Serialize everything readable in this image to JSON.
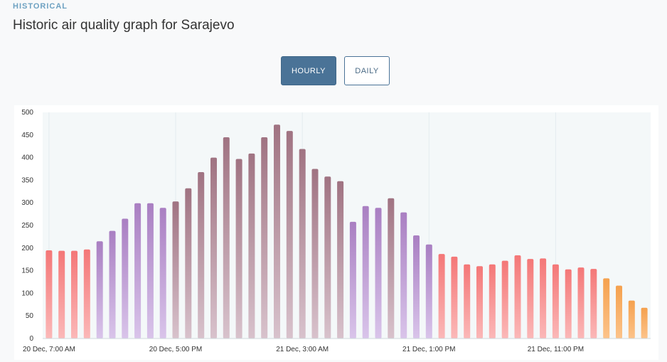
{
  "section": {
    "eyebrow": "HISTORICAL",
    "title": "Historic air quality graph for Sarajevo"
  },
  "toggle": {
    "hourly_label": "HOURLY",
    "daily_label": "DAILY",
    "selected": "HOURLY"
  },
  "colors": {
    "good_start": "#fbe89a",
    "good_end": "#f4cf4a",
    "moderate_start": "#fcc38a",
    "moderate_end": "#f5a14e",
    "unhealthy_start": "#fbb8b8",
    "unhealthy_end": "#f47777",
    "very_unhealthy_start": "#d9c4ea",
    "very_unhealthy_end": "#a97fc2",
    "hazardous_start": "#d8c2cc",
    "hazardous_end": "#a07382",
    "plot_bg": "#f4f8f9",
    "gridline": "#e4ecef"
  },
  "chart_data": {
    "type": "bar",
    "title": "",
    "xlabel": "",
    "ylabel": "",
    "ylim": [
      0,
      500
    ],
    "yticks": [
      0,
      50,
      100,
      150,
      200,
      250,
      300,
      350,
      400,
      450,
      500
    ],
    "xtick_labels": [
      "20 Dec, 7:00 AM",
      "20 Dec, 5:00 PM",
      "21 Dec, 3:00 AM",
      "21 Dec, 1:00 PM",
      "21 Dec, 11:00 PM"
    ],
    "xtick_category_index": [
      0,
      10,
      20,
      30,
      40
    ],
    "grid": true,
    "values": [
      195,
      194,
      194,
      197,
      215,
      238,
      265,
      299,
      299,
      289,
      303,
      332,
      368,
      400,
      445,
      397,
      409,
      445,
      473,
      459,
      419,
      375,
      358,
      348,
      258,
      293,
      289,
      310,
      279,
      228,
      208,
      187,
      181,
      164,
      160,
      164,
      172,
      184,
      176,
      177,
      164,
      153,
      157,
      154,
      133,
      117,
      84,
      68
    ]
  }
}
